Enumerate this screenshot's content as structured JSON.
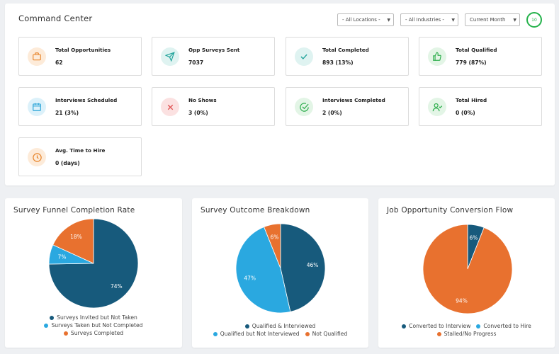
{
  "command_center": {
    "title": "Command Center",
    "filters": {
      "location": "- All Locations -",
      "industry": "- All Industries -",
      "period": "Current Month"
    },
    "refresh_value": "10"
  },
  "colors": {
    "dark_blue": "#175a7c",
    "light_blue": "#2aa8e0",
    "orange": "#e8712f",
    "green": "#24b24b"
  },
  "cards": [
    {
      "label": "Total Opportunities",
      "value": "62",
      "icon": "briefcase-icon"
    },
    {
      "label": "Opp Surveys Sent",
      "value": "7037",
      "icon": "send-icon"
    },
    {
      "label": "Total Completed",
      "value": "893 (13%)",
      "icon": "check-icon"
    },
    {
      "label": "Total Qualified",
      "value": "779 (87%)",
      "icon": "thumbs-up-icon"
    },
    {
      "label": "Interviews Scheduled",
      "value": "21 (3%)",
      "icon": "calendar-icon"
    },
    {
      "label": "No Shows",
      "value": "3 (0%)",
      "icon": "x-icon"
    },
    {
      "label": "Interviews Completed",
      "value": "2 (0%)",
      "icon": "check-circle-icon"
    },
    {
      "label": "Total Hired",
      "value": "0 (0%)",
      "icon": "user-check-icon"
    },
    {
      "label": "Avg. Time to Hire",
      "value": "0 (days)",
      "icon": "clock-icon"
    }
  ],
  "chart_data": [
    {
      "type": "pie",
      "title": "Survey Funnel Completion Rate",
      "categories": [
        "Surveys Invited but Not Taken",
        "Surveys Taken but Not Completed",
        "Surveys Completed"
      ],
      "values": [
        74,
        7,
        18
      ],
      "labels": [
        "74%",
        "7%",
        "18%"
      ],
      "colors": [
        "#175a7c",
        "#2aa8e0",
        "#e8712f"
      ],
      "legend_rows": [
        [
          0
        ],
        [
          1
        ],
        [
          2
        ]
      ],
      "legend": "bottom"
    },
    {
      "type": "pie",
      "title": "Survey Outcome Breakdown",
      "categories": [
        "Qualified & Interviewed",
        "Qualified but Not Interviewed",
        "Not Qualified"
      ],
      "values": [
        46,
        47,
        6
      ],
      "labels": [
        "46%",
        "47%",
        "6%"
      ],
      "colors": [
        "#175a7c",
        "#2aa8e0",
        "#e8712f"
      ],
      "legend_rows": [
        [
          0
        ],
        [
          1,
          2
        ]
      ],
      "legend": "bottom"
    },
    {
      "type": "pie",
      "title": "Job Opportunity Conversion Flow",
      "categories": [
        "Converted to Interview",
        "Converted to Hire",
        "Stalled/No Progress"
      ],
      "values": [
        6,
        0,
        94
      ],
      "labels": [
        "6%",
        "",
        "94%"
      ],
      "colors": [
        "#175a7c",
        "#2aa8e0",
        "#e8712f"
      ],
      "legend_rows": [
        [
          0,
          1
        ],
        [
          2
        ]
      ],
      "legend": "bottom"
    }
  ]
}
